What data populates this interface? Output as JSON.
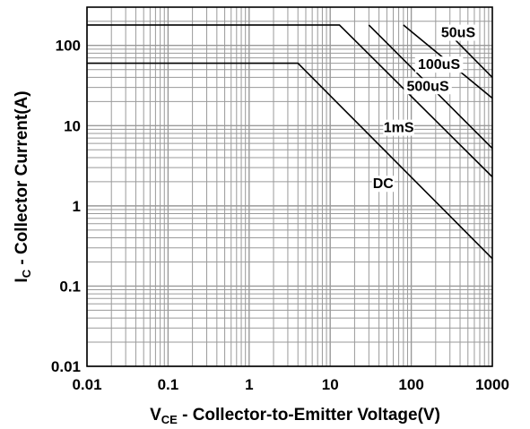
{
  "chart_data": {
    "type": "line",
    "x_scale": "log",
    "y_scale": "log",
    "xlim": [
      0.01,
      1000
    ],
    "ylim": [
      0.01,
      300
    ],
    "grid": true,
    "legend": "none",
    "x_ticks": [
      "0.01",
      "0.1",
      "1",
      "10",
      "100",
      "1000"
    ],
    "y_ticks": [
      "0.01",
      "0.1",
      "1",
      "10",
      "100"
    ],
    "xlabel": {
      "main": "V",
      "sub": "CE",
      "rest": " - Collector-to-Emitter Voltage(V)"
    },
    "ylabel": {
      "main": "I",
      "sub": "C",
      "rest": " - Collector Current(A)"
    },
    "series": [
      {
        "name": "DC",
        "label_at": [
          45,
          1.7
        ],
        "points": [
          [
            0.01,
            60
          ],
          [
            4,
            60
          ],
          [
            1000,
            0.22
          ]
        ]
      },
      {
        "name": "1mS",
        "label_at": [
          70,
          8.5
        ],
        "points": [
          [
            0.01,
            180
          ],
          [
            13,
            180
          ],
          [
            1000,
            2.3
          ]
        ]
      },
      {
        "name": "500uS",
        "label_at": [
          160,
          28
        ],
        "points": [
          [
            30,
            180
          ],
          [
            1000,
            5.2
          ]
        ]
      },
      {
        "name": "100uS",
        "label_at": [
          220,
          52
        ],
        "points": [
          [
            80,
            180
          ],
          [
            1000,
            22
          ]
        ]
      },
      {
        "name": "50uS",
        "label_at": [
          380,
          130
        ],
        "points": [
          [
            230,
            180
          ],
          [
            1000,
            40
          ]
        ]
      }
    ]
  }
}
